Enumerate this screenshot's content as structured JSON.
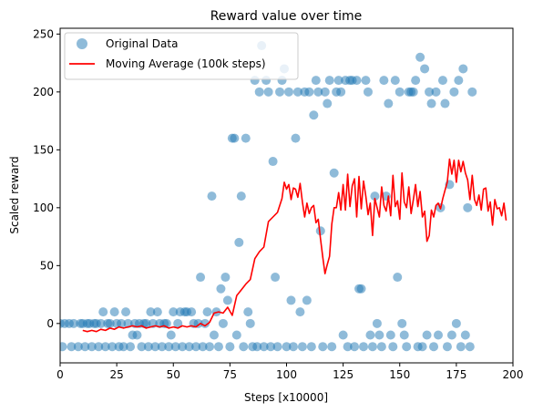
{
  "chart_data": {
    "type": "scatter",
    "title": "Reward value over time",
    "xlabel": "Steps [x10000]",
    "ylabel": "Scaled reward",
    "xlim": [
      0,
      200
    ],
    "ylim": [
      -34,
      255
    ],
    "xticks": [
      0,
      25,
      50,
      75,
      100,
      125,
      150,
      175,
      200
    ],
    "yticks": [
      0,
      50,
      100,
      150,
      200,
      250
    ],
    "grid": false,
    "legend_position": "top-left",
    "series": [
      {
        "name": "Original Data",
        "type": "scatter",
        "color": "#1f77b4",
        "points": [
          [
            0,
            0
          ],
          [
            1,
            -20
          ],
          [
            2,
            0
          ],
          [
            4,
            0
          ],
          [
            5,
            -20
          ],
          [
            6,
            0
          ],
          [
            8,
            -20
          ],
          [
            9,
            0
          ],
          [
            10,
            0
          ],
          [
            11,
            -20
          ],
          [
            12,
            0
          ],
          [
            13,
            0
          ],
          [
            14,
            -20
          ],
          [
            15,
            0
          ],
          [
            16,
            0
          ],
          [
            17,
            -20
          ],
          [
            18,
            0
          ],
          [
            19,
            10
          ],
          [
            20,
            -20
          ],
          [
            21,
            0
          ],
          [
            22,
            0
          ],
          [
            23,
            -20
          ],
          [
            24,
            10
          ],
          [
            25,
            0
          ],
          [
            26,
            -20
          ],
          [
            27,
            0
          ],
          [
            28,
            -20
          ],
          [
            29,
            10
          ],
          [
            30,
            0
          ],
          [
            31,
            -20
          ],
          [
            32,
            -10
          ],
          [
            33,
            0
          ],
          [
            34,
            -10
          ],
          [
            35,
            0
          ],
          [
            36,
            -20
          ],
          [
            37,
            0
          ],
          [
            38,
            0
          ],
          [
            39,
            -20
          ],
          [
            40,
            10
          ],
          [
            41,
            0
          ],
          [
            42,
            -20
          ],
          [
            43,
            10
          ],
          [
            44,
            0
          ],
          [
            45,
            -20
          ],
          [
            46,
            0
          ],
          [
            47,
            0
          ],
          [
            48,
            -20
          ],
          [
            49,
            -10
          ],
          [
            50,
            10
          ],
          [
            51,
            -20
          ],
          [
            52,
            0
          ],
          [
            53,
            10
          ],
          [
            54,
            -20
          ],
          [
            55,
            10
          ],
          [
            56,
            10
          ],
          [
            57,
            -20
          ],
          [
            58,
            10
          ],
          [
            59,
            0
          ],
          [
            60,
            -20
          ],
          [
            61,
            0
          ],
          [
            62,
            40
          ],
          [
            63,
            -20
          ],
          [
            64,
            0
          ],
          [
            65,
            10
          ],
          [
            66,
            -20
          ],
          [
            67,
            110
          ],
          [
            68,
            -10
          ],
          [
            69,
            10
          ],
          [
            70,
            -20
          ],
          [
            71,
            30
          ],
          [
            72,
            0
          ],
          [
            73,
            40
          ],
          [
            74,
            20
          ],
          [
            75,
            -20
          ],
          [
            76,
            160
          ],
          [
            77,
            160
          ],
          [
            78,
            -10
          ],
          [
            79,
            70
          ],
          [
            80,
            110
          ],
          [
            81,
            -20
          ],
          [
            82,
            160
          ],
          [
            83,
            10
          ],
          [
            84,
            0
          ],
          [
            85,
            -20
          ],
          [
            86,
            210
          ],
          [
            87,
            -20
          ],
          [
            88,
            200
          ],
          [
            89,
            240
          ],
          [
            90,
            -20
          ],
          [
            91,
            210
          ],
          [
            92,
            200
          ],
          [
            93,
            -20
          ],
          [
            94,
            140
          ],
          [
            95,
            40
          ],
          [
            96,
            -20
          ],
          [
            97,
            200
          ],
          [
            98,
            210
          ],
          [
            99,
            220
          ],
          [
            100,
            -20
          ],
          [
            101,
            200
          ],
          [
            102,
            20
          ],
          [
            103,
            -20
          ],
          [
            104,
            160
          ],
          [
            105,
            200
          ],
          [
            106,
            10
          ],
          [
            107,
            -20
          ],
          [
            108,
            200
          ],
          [
            109,
            20
          ],
          [
            110,
            200
          ],
          [
            111,
            -20
          ],
          [
            112,
            180
          ],
          [
            113,
            210
          ],
          [
            114,
            200
          ],
          [
            115,
            80
          ],
          [
            116,
            -20
          ],
          [
            117,
            200
          ],
          [
            118,
            190
          ],
          [
            119,
            210
          ],
          [
            120,
            -20
          ],
          [
            121,
            130
          ],
          [
            122,
            200
          ],
          [
            123,
            210
          ],
          [
            124,
            200
          ],
          [
            125,
            -10
          ],
          [
            126,
            210
          ],
          [
            127,
            -20
          ],
          [
            128,
            210
          ],
          [
            129,
            210
          ],
          [
            130,
            -20
          ],
          [
            131,
            210
          ],
          [
            132,
            30
          ],
          [
            133,
            30
          ],
          [
            134,
            -20
          ],
          [
            135,
            210
          ],
          [
            136,
            200
          ],
          [
            137,
            -10
          ],
          [
            138,
            -20
          ],
          [
            139,
            110
          ],
          [
            140,
            0
          ],
          [
            141,
            -10
          ],
          [
            142,
            -20
          ],
          [
            143,
            210
          ],
          [
            144,
            110
          ],
          [
            145,
            190
          ],
          [
            146,
            -10
          ],
          [
            147,
            -20
          ],
          [
            148,
            210
          ],
          [
            149,
            40
          ],
          [
            150,
            200
          ],
          [
            151,
            0
          ],
          [
            152,
            -10
          ],
          [
            153,
            -20
          ],
          [
            154,
            200
          ],
          [
            155,
            200
          ],
          [
            156,
            200
          ],
          [
            157,
            210
          ],
          [
            158,
            -20
          ],
          [
            159,
            230
          ],
          [
            160,
            -20
          ],
          [
            161,
            220
          ],
          [
            162,
            -10
          ],
          [
            163,
            200
          ],
          [
            164,
            190
          ],
          [
            165,
            -20
          ],
          [
            166,
            200
          ],
          [
            167,
            -10
          ],
          [
            168,
            100
          ],
          [
            169,
            210
          ],
          [
            170,
            190
          ],
          [
            171,
            -20
          ],
          [
            172,
            120
          ],
          [
            173,
            -10
          ],
          [
            174,
            200
          ],
          [
            175,
            0
          ],
          [
            176,
            210
          ],
          [
            177,
            -20
          ],
          [
            178,
            220
          ],
          [
            179,
            -10
          ],
          [
            180,
            100
          ],
          [
            181,
            -20
          ],
          [
            182,
            200
          ]
        ]
      },
      {
        "name": "Moving Average (100k steps)",
        "type": "line",
        "color": "#ff0000",
        "points": [
          [
            10,
            -6
          ],
          [
            12,
            -7
          ],
          [
            14,
            -6
          ],
          [
            16,
            -7
          ],
          [
            18,
            -5
          ],
          [
            20,
            -6
          ],
          [
            22,
            -4
          ],
          [
            24,
            -5
          ],
          [
            26,
            -3
          ],
          [
            28,
            -4
          ],
          [
            30,
            -3
          ],
          [
            32,
            -2
          ],
          [
            34,
            -3
          ],
          [
            36,
            -2
          ],
          [
            38,
            -4
          ],
          [
            40,
            -3
          ],
          [
            42,
            -2
          ],
          [
            44,
            -3
          ],
          [
            46,
            -2
          ],
          [
            48,
            -4
          ],
          [
            50,
            -3
          ],
          [
            52,
            -4
          ],
          [
            54,
            -2
          ],
          [
            56,
            -3
          ],
          [
            58,
            -2
          ],
          [
            60,
            -3
          ],
          [
            62,
            0
          ],
          [
            64,
            -2
          ],
          [
            66,
            1
          ],
          [
            68,
            9
          ],
          [
            70,
            10
          ],
          [
            72,
            9
          ],
          [
            74,
            14
          ],
          [
            76,
            7
          ],
          [
            78,
            24
          ],
          [
            80,
            29
          ],
          [
            82,
            34
          ],
          [
            84,
            38
          ],
          [
            86,
            56
          ],
          [
            88,
            62
          ],
          [
            90,
            66
          ],
          [
            92,
            88
          ],
          [
            94,
            92
          ],
          [
            96,
            96
          ],
          [
            98,
            108
          ],
          [
            99,
            122
          ],
          [
            100,
            116
          ],
          [
            101,
            120
          ],
          [
            102,
            107
          ],
          [
            103,
            117
          ],
          [
            104,
            116
          ],
          [
            105,
            109
          ],
          [
            106,
            121
          ],
          [
            107,
            105
          ],
          [
            108,
            92
          ],
          [
            109,
            104
          ],
          [
            110,
            95
          ],
          [
            111,
            100
          ],
          [
            112,
            102
          ],
          [
            113,
            87
          ],
          [
            114,
            90
          ],
          [
            115,
            73
          ],
          [
            116,
            57
          ],
          [
            117,
            43
          ],
          [
            118,
            51
          ],
          [
            119,
            58
          ],
          [
            120,
            86
          ],
          [
            121,
            100
          ],
          [
            122,
            100
          ],
          [
            123,
            113
          ],
          [
            124,
            98
          ],
          [
            125,
            120
          ],
          [
            126,
            98
          ],
          [
            127,
            129
          ],
          [
            128,
            101
          ],
          [
            129,
            119
          ],
          [
            130,
            125
          ],
          [
            131,
            92
          ],
          [
            132,
            127
          ],
          [
            133,
            99
          ],
          [
            134,
            123
          ],
          [
            135,
            110
          ],
          [
            136,
            94
          ],
          [
            137,
            104
          ],
          [
            138,
            76
          ],
          [
            139,
            108
          ],
          [
            140,
            100
          ],
          [
            141,
            92
          ],
          [
            142,
            118
          ],
          [
            143,
            102
          ],
          [
            144,
            97
          ],
          [
            145,
            110
          ],
          [
            146,
            93
          ],
          [
            147,
            128
          ],
          [
            148,
            101
          ],
          [
            149,
            106
          ],
          [
            150,
            90
          ],
          [
            151,
            130
          ],
          [
            152,
            105
          ],
          [
            153,
            100
          ],
          [
            154,
            118
          ],
          [
            155,
            95
          ],
          [
            156,
            107
          ],
          [
            157,
            120
          ],
          [
            158,
            101
          ],
          [
            159,
            114
          ],
          [
            160,
            92
          ],
          [
            161,
            97
          ],
          [
            162,
            71
          ],
          [
            163,
            76
          ],
          [
            164,
            98
          ],
          [
            165,
            92
          ],
          [
            166,
            102
          ],
          [
            167,
            104
          ],
          [
            168,
            99
          ],
          [
            169,
            108
          ],
          [
            170,
            115
          ],
          [
            171,
            122
          ],
          [
            172,
            142
          ],
          [
            173,
            129
          ],
          [
            174,
            141
          ],
          [
            175,
            122
          ],
          [
            176,
            141
          ],
          [
            177,
            131
          ],
          [
            178,
            140
          ],
          [
            179,
            130
          ],
          [
            180,
            124
          ],
          [
            181,
            107
          ],
          [
            182,
            128
          ],
          [
            183,
            107
          ],
          [
            184,
            102
          ],
          [
            185,
            111
          ],
          [
            186,
            98
          ],
          [
            187,
            116
          ],
          [
            188,
            117
          ],
          [
            189,
            97
          ],
          [
            190,
            105
          ],
          [
            191,
            85
          ],
          [
            192,
            107
          ],
          [
            193,
            99
          ],
          [
            194,
            100
          ],
          [
            195,
            93
          ],
          [
            196,
            104
          ],
          [
            197,
            89
          ]
        ]
      }
    ]
  }
}
